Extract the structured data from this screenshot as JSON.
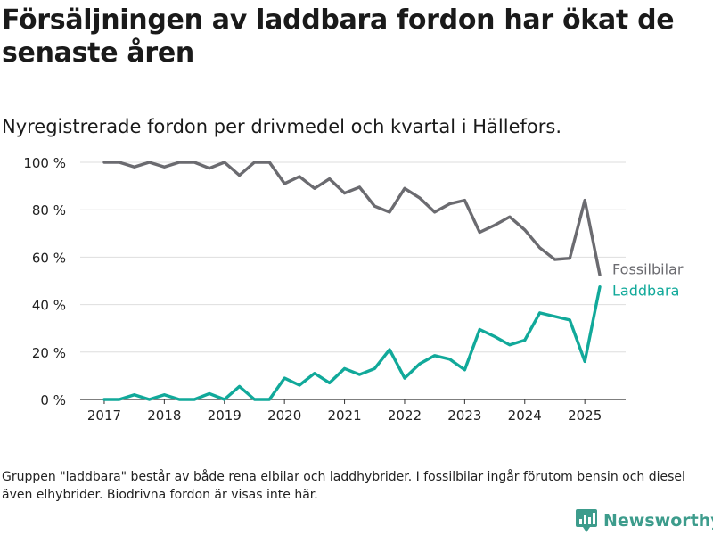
{
  "title": "Försäljningen av laddbara fordon har ökat de senaste åren",
  "subtitle": "Nyregistrerade fordon per drivmedel och kvartal i Hällefors.",
  "footnote": "Gruppen \"laddbara\" består av både rena elbilar och laddhybrider. I fossilbilar ingår förutom bensin och diesel även elhybrider. Biodrivna fordon är visas inte här.",
  "brand": "Newsworthy",
  "chart_data": {
    "type": "line",
    "ylim": [
      0,
      100
    ],
    "xlim": [
      2016.6,
      2025.68
    ],
    "y_ticks": [
      0,
      20,
      40,
      60,
      80,
      100
    ],
    "y_tick_labels": [
      "0 %",
      "20 %",
      "40 %",
      "60 %",
      "80 %",
      "100 %"
    ],
    "x_ticks": [
      2017,
      2018,
      2019,
      2020,
      2021,
      2022,
      2023,
      2024,
      2025
    ],
    "x_tick_labels": [
      "2017",
      "2018",
      "2019",
      "2020",
      "2021",
      "2022",
      "2023",
      "2024",
      "2025"
    ],
    "grid": true,
    "x": [
      2017.0,
      2017.25,
      2017.5,
      2017.75,
      2018.0,
      2018.25,
      2018.5,
      2018.75,
      2019.0,
      2019.25,
      2019.5,
      2019.75,
      2020.0,
      2020.25,
      2020.5,
      2020.75,
      2021.0,
      2021.25,
      2021.5,
      2021.75,
      2022.0,
      2022.25,
      2022.5,
      2022.75,
      2023.0,
      2023.25,
      2023.5,
      2023.75,
      2024.0,
      2024.25,
      2024.5,
      2024.75,
      2025.0,
      2025.25
    ],
    "series": [
      {
        "name": "Fossilbilar",
        "color": "#6b6b70",
        "values": [
          100,
          100,
          98,
          100,
          98,
          100,
          100,
          97.5,
          100,
          94.5,
          100,
          100,
          91,
          94,
          89,
          93,
          87,
          89.5,
          81.5,
          79,
          89,
          85,
          79,
          82.5,
          84,
          70.5,
          73.5,
          77,
          71.5,
          64,
          59,
          59.5,
          84,
          52.5
        ]
      },
      {
        "name": "Laddbara",
        "color": "#11a99a",
        "values": [
          0,
          0,
          2,
          0,
          2,
          0,
          0,
          2.5,
          0,
          5.5,
          0,
          0,
          9,
          6,
          11,
          7,
          13,
          10.5,
          13,
          21,
          9,
          15,
          18.5,
          17,
          12.5,
          29.5,
          26.5,
          23,
          25,
          36.5,
          35,
          33.5,
          16,
          47.5
        ]
      }
    ]
  }
}
